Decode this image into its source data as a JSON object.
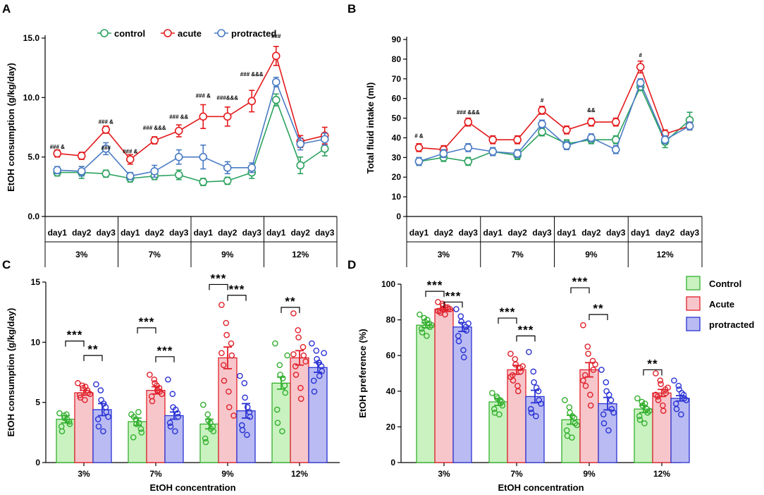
{
  "chart_data": [
    {
      "panel": "A",
      "type": "line",
      "ylabel": "EtOH consumption  (g/kg/day)",
      "ylim": [
        0,
        15
      ],
      "yticks": [
        "0.0",
        "5.0",
        "10.0",
        "15.0"
      ],
      "categories": [
        "day1",
        "day2",
        "day3",
        "day1",
        "day2",
        "day3",
        "day1",
        "day2",
        "day3",
        "day1",
        "day2",
        "day3"
      ],
      "groups": [
        "3%",
        "7%",
        "9%",
        "12%"
      ],
      "legend": [
        "control",
        "acute",
        "protracted"
      ],
      "series": [
        {
          "name": "control",
          "color": "#2ca25f",
          "values": [
            3.7,
            3.7,
            3.6,
            3.2,
            3.4,
            3.5,
            2.9,
            3.0,
            3.7,
            9.8,
            4.3,
            5.7
          ],
          "errors": [
            0.3,
            0.5,
            0.3,
            0.3,
            0.3,
            0.4,
            0.3,
            0.3,
            0.5,
            0.5,
            0.7,
            0.6
          ]
        },
        {
          "name": "acute",
          "color": "#e31a1c",
          "values": [
            5.3,
            5.1,
            7.3,
            4.8,
            6.4,
            7.2,
            8.4,
            8.4,
            9.7,
            13.5,
            6.3,
            6.8
          ],
          "errors": [
            0.3,
            0.3,
            0.3,
            0.4,
            0.3,
            0.5,
            1.0,
            0.8,
            0.9,
            0.8,
            0.5,
            0.7
          ]
        },
        {
          "name": "protracted",
          "color": "#4a7bc4",
          "values": [
            3.9,
            3.8,
            5.7,
            3.4,
            3.8,
            5.0,
            5.0,
            4.1,
            4.1,
            11.3,
            6.1,
            6.5
          ],
          "errors": [
            0.3,
            0.4,
            0.5,
            0.3,
            0.5,
            0.6,
            1.0,
            0.5,
            0.4,
            0.4,
            0.5,
            0.5
          ]
        }
      ],
      "annotations": [
        {
          "index": 0,
          "value": 5.7,
          "text": "### &"
        },
        {
          "index": 2,
          "value": 7.8,
          "text": "### &"
        },
        {
          "index": 2,
          "value": 5.6,
          "text": "###"
        },
        {
          "index": 3,
          "value": 5.3,
          "text": "### &"
        },
        {
          "index": 4,
          "value": 7.3,
          "text": "### &&&"
        },
        {
          "index": 5,
          "value": 8.2,
          "text": "### &&"
        },
        {
          "index": 6,
          "value": 10.0,
          "text": "### &"
        },
        {
          "index": 7,
          "value": 9.8,
          "text": "###&&&"
        },
        {
          "index": 8,
          "value": 11.8,
          "text": "### &&&"
        },
        {
          "index": 9,
          "value": 15.0,
          "text": "###"
        }
      ]
    },
    {
      "panel": "B",
      "type": "line",
      "ylabel": "Total fluid intake  (ml)",
      "ylim": [
        0,
        90
      ],
      "yticks": [
        "0",
        "10",
        "20",
        "30",
        "40",
        "50",
        "60",
        "70",
        "80",
        "90"
      ],
      "categories": [
        "day1",
        "day2",
        "day3",
        "day1",
        "day2",
        "day3",
        "day1",
        "day2",
        "day3",
        "day1",
        "day2",
        "day3"
      ],
      "groups": [
        "3%",
        "7%",
        "9%",
        "12%"
      ],
      "series": [
        {
          "name": "control",
          "color": "#2ca25f",
          "values": [
            28,
            30,
            28,
            33,
            31,
            43,
            37,
            39,
            39,
            66,
            38,
            49
          ],
          "errors": [
            2,
            2,
            2,
            2,
            2,
            2,
            2,
            2,
            2,
            2,
            3,
            4
          ]
        },
        {
          "name": "acute",
          "color": "#e31a1c",
          "values": [
            35,
            34,
            48,
            39,
            39,
            54,
            44,
            48,
            48,
            76,
            42,
            46
          ],
          "errors": [
            2,
            2,
            2,
            2,
            2,
            2,
            2,
            2,
            2,
            3,
            2,
            2
          ]
        },
        {
          "name": "protracted",
          "color": "#4a7bc4",
          "values": [
            28,
            32,
            35,
            33,
            32,
            47,
            36,
            40,
            34,
            68,
            39,
            46
          ],
          "errors": [
            2,
            2,
            2,
            2,
            2,
            2,
            2,
            2,
            2,
            2,
            2,
            2
          ]
        }
      ],
      "annotations": [
        {
          "index": 0,
          "value": 40,
          "text": "# &"
        },
        {
          "index": 2,
          "value": 52,
          "text": "### &&&"
        },
        {
          "index": 5,
          "value": 58,
          "text": "#"
        },
        {
          "index": 7,
          "value": 53,
          "text": "&&"
        },
        {
          "index": 9,
          "value": 81,
          "text": "#"
        }
      ]
    },
    {
      "panel": "C",
      "type": "bar",
      "ylabel": "EtOH consumption (g/kg/day)",
      "xlabel": "EtOH concentration",
      "ylim": [
        0,
        15
      ],
      "yticks": [
        "0",
        "5",
        "10",
        "15"
      ],
      "categories": [
        "3%",
        "7%",
        "9%",
        "12%"
      ],
      "series": [
        {
          "name": "Control",
          "values": [
            3.6,
            3.4,
            3.2,
            6.6
          ],
          "errors": [
            0.3,
            0.3,
            0.4,
            0.5
          ],
          "points": [
            [
              4.1,
              3.9,
              3.7,
              3.4,
              3.2,
              3.0,
              2.6,
              4.0,
              3.6
            ],
            [
              4.0,
              3.6,
              3.2,
              2.8,
              2.5,
              2.1,
              3.8,
              4.2,
              3.3
            ],
            [
              4.8,
              4.0,
              3.5,
              3.0,
              2.6,
              2.0,
              1.7,
              3.3,
              2.8
            ],
            [
              9.9,
              8.1,
              7.3,
              6.4,
              5.8,
              4.4,
              3.3,
              2.6,
              7.0,
              8.9
            ]
          ]
        },
        {
          "name": "Acute",
          "values": [
            5.8,
            6.0,
            8.7,
            8.7
          ],
          "errors": [
            0.2,
            0.3,
            0.9,
            0.6
          ],
          "points": [
            [
              6.6,
              6.4,
              6.2,
              6.0,
              5.8,
              5.6,
              5.4,
              5.2,
              6.3,
              5.7
            ],
            [
              7.3,
              6.9,
              6.6,
              6.2,
              5.9,
              5.5,
              5.1,
              6.4,
              6.0,
              5.7
            ],
            [
              13.1,
              11.6,
              10.6,
              9.9,
              8.9,
              8.1,
              6.8,
              5.9,
              4.6,
              3.9,
              9.1
            ],
            [
              12.4,
              11.0,
              10.4,
              9.6,
              8.9,
              8.0,
              7.3,
              6.2,
              5.3,
              8.4,
              9.0
            ]
          ]
        },
        {
          "name": "protracted",
          "values": [
            4.4,
            3.9,
            4.3,
            7.9
          ],
          "errors": [
            0.5,
            0.3,
            0.6,
            0.4
          ],
          "points": [
            [
              6.5,
              6.0,
              5.2,
              4.6,
              4.2,
              3.6,
              3.0,
              2.6,
              4.9,
              3.8
            ],
            [
              6.9,
              5.7,
              4.6,
              4.1,
              3.8,
              3.3,
              3.0,
              2.6,
              4.4
            ],
            [
              7.2,
              6.6,
              5.4,
              4.2,
              3.8,
              3.1,
              2.7,
              2.3,
              4.6
            ],
            [
              9.9,
              9.3,
              8.6,
              8.0,
              7.6,
              6.8,
              5.9,
              8.3,
              7.2,
              9.1
            ]
          ]
        }
      ],
      "significance": [
        {
          "cat": 0,
          "from": 0,
          "to": 1,
          "level": 10.1,
          "text": "***"
        },
        {
          "cat": 0,
          "from": 1,
          "to": 2,
          "level": 8.9,
          "text": "**"
        },
        {
          "cat": 1,
          "from": 0,
          "to": 1,
          "level": 11.2,
          "text": "***"
        },
        {
          "cat": 1,
          "from": 1,
          "to": 2,
          "level": 8.8,
          "text": "***"
        },
        {
          "cat": 2,
          "from": 0,
          "to": 1,
          "level": 14.8,
          "text": "***"
        },
        {
          "cat": 2,
          "from": 1,
          "to": 2,
          "level": 13.9,
          "text": "***"
        },
        {
          "cat": 3,
          "from": 0,
          "to": 1,
          "level": 12.9,
          "text": "**"
        }
      ]
    },
    {
      "panel": "D",
      "type": "bar",
      "ylabel": "EtOH preference (%)",
      "xlabel": "EtOH concentration",
      "ylim": [
        0,
        100
      ],
      "yticks": [
        "0",
        "20",
        "40",
        "60",
        "80",
        "100"
      ],
      "categories": [
        "3%",
        "7%",
        "9%",
        "12%"
      ],
      "legend": [
        "Control",
        "Acute",
        "protracted"
      ],
      "series": [
        {
          "name": "Control",
          "values": [
            77,
            34,
            24,
            30
          ],
          "errors": [
            1.5,
            2,
            2.5,
            2
          ],
          "points": [
            [
              83,
              81,
              79,
              78,
              76,
              75,
              73,
              71,
              80,
              77
            ],
            [
              39,
              37,
              36,
              34,
              32,
              30,
              28,
              27,
              35
            ],
            [
              35,
              31,
              28,
              25,
              22,
              18,
              15,
              14,
              26,
              21
            ],
            [
              36,
              34,
              32,
              30,
              28,
              26,
              24,
              22,
              33,
              29
            ]
          ]
        },
        {
          "name": "Acute",
          "values": [
            86,
            52,
            52,
            39
          ],
          "errors": [
            1,
            2.5,
            4,
            2
          ],
          "points": [
            [
              90,
              89,
              88,
              87,
              86,
              85,
              84,
              83,
              87,
              86,
              85
            ],
            [
              61,
              58,
              55,
              53,
              51,
              49,
              46,
              43,
              40,
              54,
              48
            ],
            [
              77,
              65,
              61,
              57,
              52,
              49,
              43,
              38,
              32,
              55,
              46
            ],
            [
              50,
              46,
              44,
              41,
              39,
              37,
              35,
              32,
              29,
              42,
              38
            ]
          ]
        },
        {
          "name": "protracted",
          "values": [
            76,
            37,
            33,
            36
          ],
          "errors": [
            2.5,
            3.5,
            3.5,
            1.5
          ],
          "points": [
            [
              86,
              82,
              79,
              76,
              74,
              71,
              68,
              63,
              59,
              78
            ],
            [
              62,
              51,
              45,
              40,
              35,
              30,
              28,
              26,
              42,
              33
            ],
            [
              52,
              45,
              40,
              35,
              30,
              27,
              22,
              18,
              38,
              28
            ],
            [
              46,
              43,
              41,
              38,
              36,
              33,
              30,
              27,
              39,
              35
            ]
          ]
        }
      ],
      "significance": [
        {
          "cat": 0,
          "from": 0,
          "to": 1,
          "level": 96,
          "text": "***"
        },
        {
          "cat": 0,
          "from": 1,
          "to": 2,
          "level": 90,
          "text": "***"
        },
        {
          "cat": 1,
          "from": 0,
          "to": 1,
          "level": 81,
          "text": "***"
        },
        {
          "cat": 1,
          "from": 1,
          "to": 2,
          "level": 71,
          "text": "***"
        },
        {
          "cat": 2,
          "from": 0,
          "to": 1,
          "level": 98,
          "text": "***"
        },
        {
          "cat": 2,
          "from": 1,
          "to": 2,
          "level": 83,
          "text": "**"
        },
        {
          "cat": 3,
          "from": 0,
          "to": 1,
          "level": 52,
          "text": "**"
        }
      ]
    }
  ],
  "colors": {
    "control_line": "#2ca25f",
    "acute_line": "#e31a1c",
    "protracted_line": "#4a7bc4",
    "control_fill": "#c9f2c0",
    "control_edge": "#33b02e",
    "acute_fill": "#f7c6cb",
    "acute_edge": "#e0202a",
    "protracted_fill": "#b9bbf2",
    "protracted_edge": "#2a32d4"
  }
}
